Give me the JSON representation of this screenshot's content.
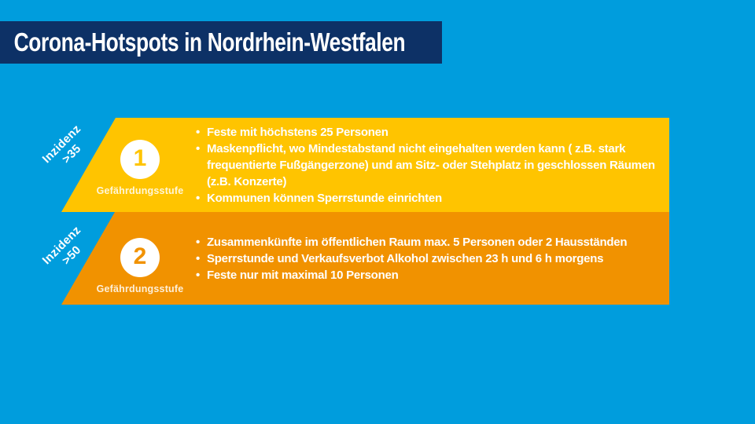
{
  "canvas": {
    "background_color": "#009ddd"
  },
  "header": {
    "title": "Corona-Hotspots in Nordrhein-Westfalen",
    "bar_color": "#0d3166",
    "text_color": "#ffffff"
  },
  "levels": [
    {
      "incidence_label": "Inzidenz",
      "incidence_threshold": ">35",
      "number": "1",
      "caption": "Gefährdungsstufe",
      "banner_color": "#ffc400",
      "restrictions": [
        "Feste mit höchstens 25 Personen",
        "Maskenpflicht, wo Mindestabstand nicht eingehalten werden kann ( z.B. stark frequentierte Fußgängerzone) und am Sitz- oder Stehplatz in geschlossen Räumen (z.B. Konzerte)",
        "Kommunen können Sperrstunde einrichten"
      ]
    },
    {
      "incidence_label": "Inzidenz",
      "incidence_threshold": ">50",
      "number": "2",
      "caption": "Gefährdungsstufe",
      "banner_color": "#f19200",
      "restrictions": [
        "Zusammenkünfte im öffentlichen Raum max. 5 Personen oder 2 Hausständen",
        "Sperrstunde und Verkaufsverbot Alkohol zwischen 23 h und 6 h morgens",
        "Feste nur mit maximal 10 Personen"
      ]
    }
  ]
}
